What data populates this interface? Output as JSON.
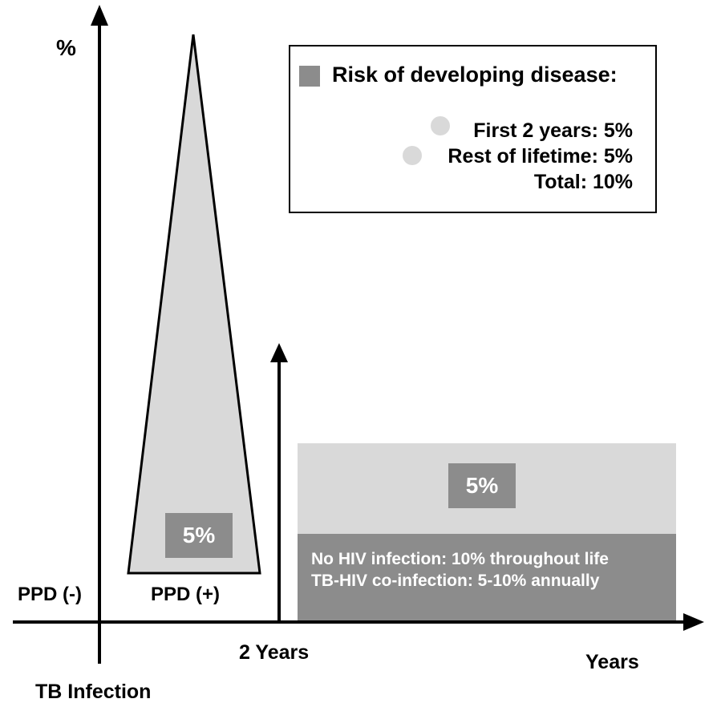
{
  "y_axis_label": "%",
  "x_axis_label": "Years",
  "x_marker_label": "2 Years",
  "origin_label": "TB Infection",
  "ppd_negative_label": "PPD (-)",
  "ppd_positive_label": "PPD (+)",
  "triangle_percent": "5%",
  "band_percent": "5%",
  "band_notes": [
    "No HIV infection: 10% throughout life",
    "TB-HIV co-infection: 5-10% annually"
  ],
  "legend": {
    "title": "Risk of developing disease:",
    "rows": [
      "First 2 years: 5%",
      "Rest of lifetime: 5%",
      "Total: 10%"
    ]
  },
  "colors": {
    "light_gray": "#d9d9d9",
    "dark_gray": "#8c8c8c",
    "axis": "#000000"
  }
}
